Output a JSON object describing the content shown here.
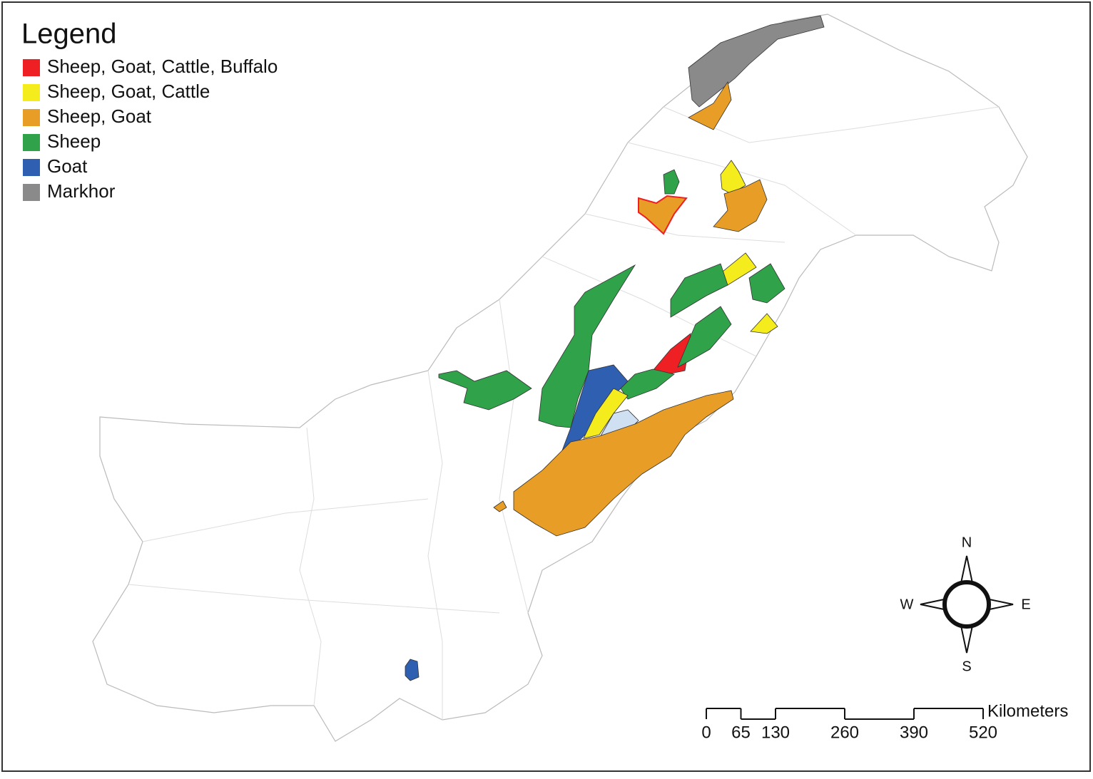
{
  "legend": {
    "title": "Legend",
    "items": [
      {
        "label": "Sheep, Goat, Cattle, Buffalo",
        "color": "#ee2024"
      },
      {
        "label": "Sheep, Goat, Cattle",
        "color": "#f5ec1d"
      },
      {
        "label": "Sheep, Goat",
        "color": "#e89d26"
      },
      {
        "label": "Sheep",
        "color": "#2fa24a"
      },
      {
        "label": "Goat",
        "color": "#2f5fb0"
      },
      {
        "label": "Markhor",
        "color": "#8a8a8a"
      }
    ]
  },
  "compass": {
    "north": "N",
    "east": "E",
    "south": "S",
    "west": "W"
  },
  "scale_bar": {
    "unit": "Kilometers",
    "ticks": [
      0,
      65,
      130,
      260,
      390,
      520
    ]
  }
}
